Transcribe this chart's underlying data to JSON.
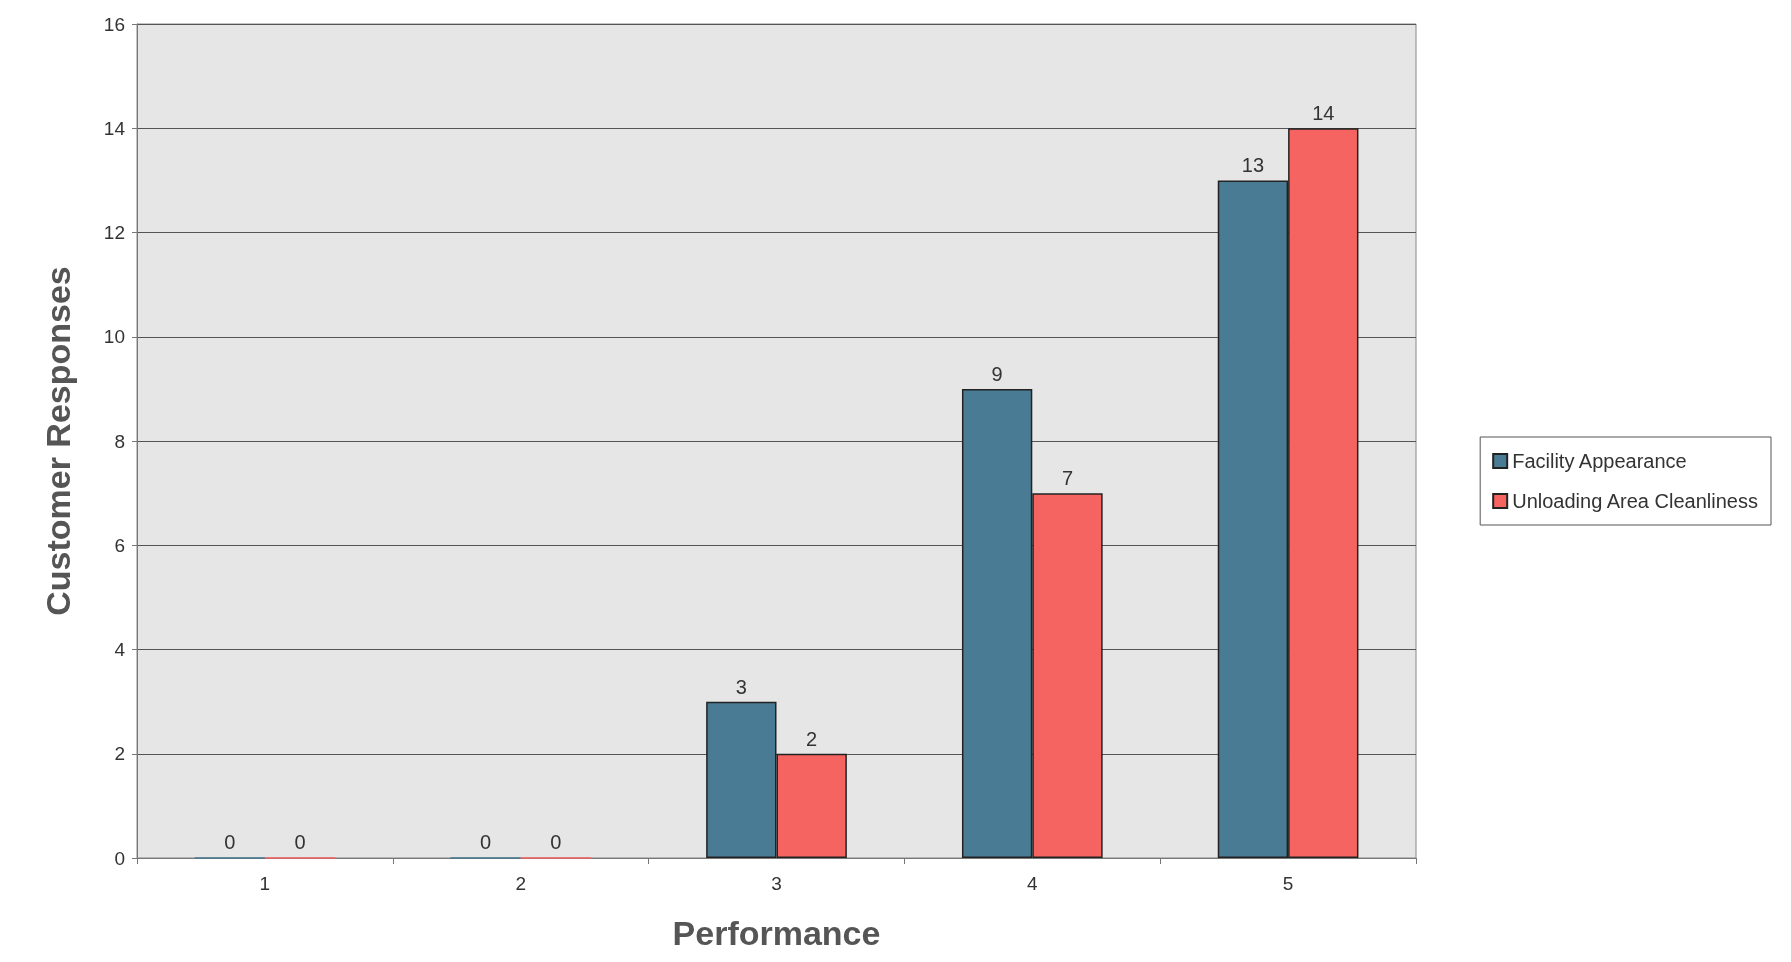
{
  "chart_data": {
    "type": "bar",
    "xlabel": "Performance",
    "ylabel": "Customer Responses",
    "categories": [
      "1",
      "2",
      "3",
      "4",
      "5"
    ],
    "series": [
      {
        "name": "Facility Appearance",
        "color": "#4a7b95",
        "values": [
          0,
          0,
          3,
          9,
          13
        ]
      },
      {
        "name": "Unloading Area Cleanliness",
        "color": "#f56461",
        "values": [
          0,
          0,
          2,
          7,
          14
        ]
      }
    ],
    "ylim": [
      0,
      16
    ],
    "yticks": [
      0,
      2,
      4,
      6,
      8,
      10,
      12,
      14,
      16
    ],
    "grid": "y",
    "legend": "right",
    "data_labels": true
  }
}
